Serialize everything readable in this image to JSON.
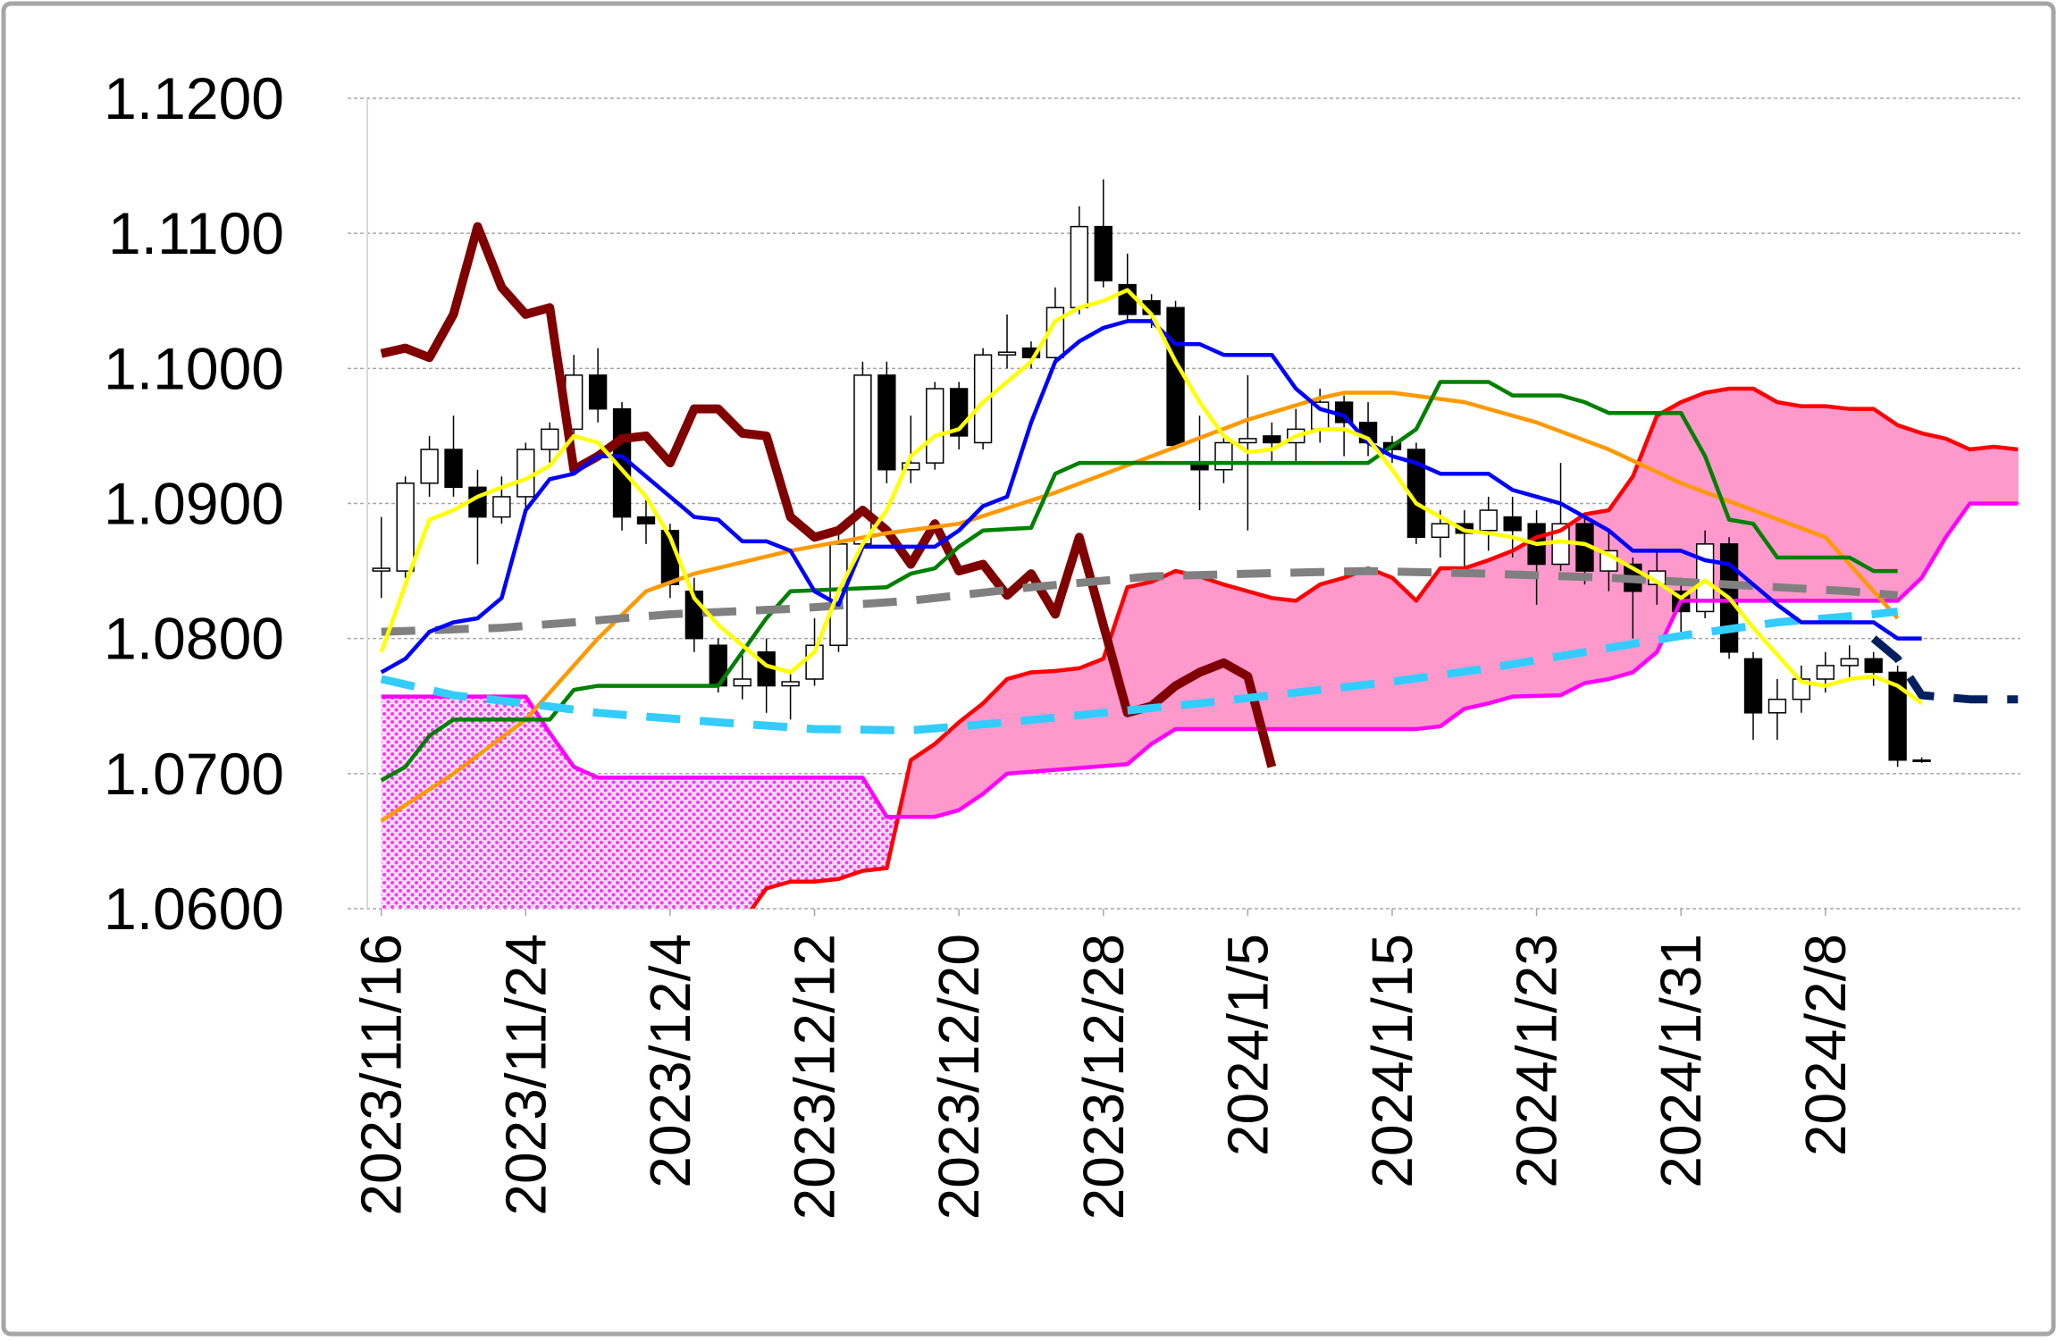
{
  "chart_data": {
    "type": "candlestick",
    "xlim": [
      -1.4,
      68.1
    ],
    "xticks": [
      {
        "value": 0,
        "label": "2023/11/16"
      },
      {
        "value": 6,
        "label": "2023/11/24"
      },
      {
        "value": 12,
        "label": "2023/12/4"
      },
      {
        "value": 18,
        "label": "2023/12/12"
      },
      {
        "value": 24,
        "label": "2023/12/20"
      },
      {
        "value": 30,
        "label": "2023/12/28"
      },
      {
        "value": 36,
        "label": "2024/1/5"
      },
      {
        "value": 42,
        "label": "2024/1/15"
      },
      {
        "value": 48,
        "label": "2024/1/23"
      },
      {
        "value": 54,
        "label": "2024/1/31"
      },
      {
        "value": 60,
        "label": "2024/2/8"
      }
    ],
    "ylim": [
      1.06,
      1.12
    ],
    "yticks": [
      {
        "value": 1.06,
        "label": "1.0600"
      },
      {
        "value": 1.07,
        "label": "1.0700"
      },
      {
        "value": 1.08,
        "label": "1.0800"
      },
      {
        "value": 1.09,
        "label": "1.0900"
      },
      {
        "value": 1.1,
        "label": "1.1000"
      },
      {
        "value": 1.11,
        "label": "1.1100"
      },
      {
        "value": 1.12,
        "label": "1.1200"
      }
    ],
    "grid": true,
    "x": [
      0,
      1,
      2,
      3,
      4,
      5,
      6,
      7,
      8,
      9,
      10,
      11,
      12,
      13,
      14,
      15,
      16,
      17,
      18,
      19,
      20,
      21,
      22,
      23,
      24,
      25,
      26,
      27,
      28,
      29,
      30,
      31,
      32,
      33,
      34,
      35,
      36,
      37,
      38,
      39,
      40,
      41,
      42,
      43,
      44,
      45,
      46,
      47,
      48,
      49,
      50,
      51,
      52,
      53,
      54,
      55,
      56,
      57,
      58,
      59,
      60,
      61,
      62,
      63,
      64
    ],
    "candles": {
      "up_color": "#ffffff",
      "down_color": "#000000",
      "open": [
        1.085,
        1.085,
        1.0915,
        1.094,
        1.0912,
        1.089,
        1.0905,
        1.094,
        1.0955,
        1.0995,
        1.097,
        1.089,
        1.088,
        1.0835,
        1.0795,
        1.0765,
        1.079,
        1.0765,
        1.077,
        1.0795,
        1.087,
        1.0995,
        1.0925,
        1.093,
        1.0985,
        1.0945,
        1.101,
        1.1015,
        1.1008,
        1.1045,
        1.1105,
        1.1062,
        1.105,
        1.1045,
        1.093,
        1.0925,
        1.0945,
        1.095,
        1.0945,
        1.0955,
        1.0975,
        1.096,
        1.0945,
        1.094,
        1.0875,
        1.0885,
        1.088,
        1.089,
        1.0885,
        1.0855,
        1.0885,
        1.085,
        1.0855,
        1.084,
        1.0835,
        1.082,
        1.087,
        1.0785,
        1.0745,
        1.0755,
        1.077,
        1.078,
        1.0785,
        1.0775,
        1.071
      ],
      "high": [
        1.089,
        1.092,
        1.095,
        1.0965,
        1.0925,
        1.092,
        1.0945,
        1.096,
        1.101,
        1.1015,
        1.0975,
        1.0905,
        1.0885,
        1.0845,
        1.08,
        1.079,
        1.08,
        1.0775,
        1.0815,
        1.088,
        1.1005,
        1.1005,
        1.0965,
        1.099,
        1.099,
        1.1015,
        1.104,
        1.102,
        1.106,
        1.112,
        1.114,
        1.1085,
        1.1055,
        1.105,
        1.0965,
        1.095,
        1.0995,
        1.096,
        1.097,
        1.0985,
        1.098,
        1.0975,
        1.095,
        1.0945,
        1.0895,
        1.0895,
        1.0905,
        1.0905,
        1.0895,
        1.093,
        1.089,
        1.088,
        1.086,
        1.0865,
        1.0845,
        1.088,
        1.0875,
        1.079,
        1.077,
        1.078,
        1.079,
        1.0795,
        1.079,
        1.078,
        1.0712
      ],
      "low": [
        1.083,
        1.0845,
        1.0905,
        1.0905,
        1.0855,
        1.0885,
        1.0895,
        1.093,
        1.095,
        1.096,
        1.088,
        1.087,
        1.083,
        1.079,
        1.076,
        1.0755,
        1.0745,
        1.074,
        1.0765,
        1.079,
        1.0865,
        1.0915,
        1.0915,
        1.0925,
        1.094,
        1.094,
        1.1,
        1.1,
        1.1005,
        1.104,
        1.106,
        1.1035,
        1.103,
        1.094,
        1.0895,
        1.0915,
        1.088,
        1.093,
        1.093,
        1.0945,
        1.0935,
        1.0935,
        1.093,
        1.087,
        1.086,
        1.085,
        1.0865,
        1.086,
        1.0825,
        1.085,
        1.084,
        1.0835,
        1.08,
        1.0825,
        1.0805,
        1.0815,
        1.0785,
        1.0725,
        1.0725,
        1.0745,
        1.076,
        1.077,
        1.0765,
        1.0705,
        1.0708
      ],
      "close": [
        1.0852,
        1.0915,
        1.094,
        1.0912,
        1.089,
        1.0905,
        1.094,
        1.0955,
        1.0995,
        1.097,
        1.089,
        1.0885,
        1.084,
        1.08,
        1.0765,
        1.077,
        1.0765,
        1.0768,
        1.0795,
        1.087,
        1.0995,
        1.0925,
        1.093,
        1.0985,
        1.095,
        1.101,
        1.1012,
        1.1008,
        1.1045,
        1.1105,
        1.1065,
        1.104,
        1.104,
        1.0943,
        1.0925,
        1.0945,
        1.0948,
        1.0945,
        1.0955,
        1.0975,
        1.096,
        1.0945,
        1.094,
        1.0875,
        1.0885,
        1.0878,
        1.0895,
        1.088,
        1.0855,
        1.0885,
        1.085,
        1.0865,
        1.0835,
        1.085,
        1.082,
        1.087,
        1.079,
        1.0745,
        1.0755,
        1.077,
        1.078,
        1.0785,
        1.0775,
        1.071,
        1.071
      ]
    },
    "cloud": {
      "color": "#ff99cc",
      "pattern_color": "#ff33ff"
    },
    "series": [
      {
        "color": "#ff0000",
        "style": "solid",
        "x": [
          15,
          16,
          17,
          18,
          19,
          20,
          21,
          22,
          23,
          24,
          25,
          26,
          27,
          28,
          29,
          30,
          31,
          32,
          33,
          34,
          35,
          36,
          37,
          38,
          39,
          40,
          41,
          42,
          43,
          44,
          45,
          46,
          47,
          48,
          49,
          50,
          51,
          52,
          53,
          54,
          55,
          56,
          57,
          58,
          59,
          60,
          61,
          62,
          63,
          64,
          65,
          66,
          67,
          68
        ],
        "values": [
          1.059,
          1.0615,
          1.062,
          1.062,
          1.0622,
          1.0628,
          1.063,
          1.071,
          1.0722,
          1.0738,
          1.0752,
          1.077,
          1.0775,
          1.0776,
          1.0778,
          1.0785,
          1.0838,
          1.0842,
          1.085,
          1.0846,
          1.084,
          1.0835,
          1.083,
          1.0828,
          1.084,
          1.0845,
          1.0852,
          1.0845,
          1.0828,
          1.0852,
          1.0852,
          1.0858,
          1.0865,
          1.0875,
          1.088,
          1.0892,
          1.0895,
          1.092,
          1.0965,
          1.0975,
          1.0982,
          1.0985,
          1.0985,
          1.0975,
          1.0972,
          1.0972,
          1.097,
          1.097,
          1.0958,
          1.0952,
          1.0948,
          1.094,
          1.0942,
          1.094
        ]
      },
      {
        "color": "#ff00ff",
        "style": "solid",
        "x": [
          0,
          6,
          7,
          8,
          9,
          20,
          21,
          23,
          24,
          25,
          26,
          31,
          32,
          33,
          43,
          44,
          45,
          46,
          47,
          49,
          50,
          51,
          52,
          53,
          54,
          63,
          64,
          65,
          66,
          68
        ],
        "values": [
          1.0757,
          1.0757,
          1.073,
          1.0705,
          1.0697,
          1.0697,
          1.0668,
          1.0668,
          1.0673,
          1.0685,
          1.07,
          1.0707,
          1.0722,
          1.0733,
          1.0733,
          1.0735,
          1.0748,
          1.0752,
          1.0757,
          1.0758,
          1.0767,
          1.077,
          1.0775,
          1.079,
          1.0828,
          1.0828,
          1.0845,
          1.0875,
          1.09,
          1.09
        ]
      },
      {
        "color": "#800000",
        "style": "bold",
        "x": [
          0,
          1,
          2,
          3,
          4,
          5,
          6,
          7,
          8,
          9,
          10,
          11,
          12,
          13,
          14,
          15,
          16,
          17,
          18,
          19,
          20,
          21,
          22,
          23,
          24,
          25,
          26,
          27,
          28,
          29,
          30,
          31,
          32,
          33,
          34,
          35,
          36,
          37
        ],
        "values": [
          1.1011,
          1.1015,
          1.1008,
          1.104,
          1.1105,
          1.106,
          1.104,
          1.1045,
          1.0925,
          1.0935,
          1.0948,
          1.095,
          1.093,
          1.097,
          1.097,
          1.0952,
          1.095,
          1.089,
          1.0875,
          1.088,
          1.0895,
          1.088,
          1.0855,
          1.0885,
          1.085,
          1.0855,
          1.0832,
          1.0848,
          1.0818,
          1.0875,
          1.081,
          1.0745,
          1.075,
          1.0765,
          1.0775,
          1.0782,
          1.0772,
          1.0705
        ]
      },
      {
        "color": "#ff9900",
        "style": "solid",
        "x": [
          0,
          3,
          6,
          9,
          11,
          13,
          17,
          21,
          24,
          28,
          32,
          36,
          39,
          40,
          42,
          45,
          48,
          51,
          54,
          57,
          60,
          63
        ],
        "values": [
          1.0665,
          1.07,
          1.074,
          1.08,
          1.0835,
          1.0848,
          1.0865,
          1.0878,
          1.0885,
          1.0908,
          1.0935,
          1.0962,
          1.0978,
          1.0982,
          1.0982,
          1.0975,
          1.096,
          1.094,
          1.0915,
          1.0895,
          1.0875,
          1.0815
        ]
      },
      {
        "color": "#008000",
        "style": "solid",
        "x": [
          0,
          1,
          2,
          3,
          7,
          8,
          9,
          14,
          15,
          16,
          17,
          21,
          22,
          23,
          24,
          25,
          27,
          28,
          29,
          41,
          43,
          44,
          46,
          47,
          49,
          50,
          51,
          54,
          55,
          56,
          57,
          58,
          61,
          62,
          63
        ],
        "values": [
          1.0695,
          1.0705,
          1.0728,
          1.074,
          1.074,
          1.0762,
          1.0765,
          1.0765,
          1.079,
          1.0815,
          1.0835,
          1.0838,
          1.0848,
          1.0852,
          1.0868,
          1.088,
          1.0882,
          1.0922,
          1.093,
          1.093,
          1.0955,
          1.099,
          1.099,
          1.098,
          1.098,
          1.0975,
          1.0967,
          1.0967,
          1.0935,
          1.0888,
          1.0885,
          1.086,
          1.086,
          1.085,
          1.085
        ]
      },
      {
        "color": "#808080",
        "style": "dashed",
        "x": [
          0,
          5,
          8,
          12,
          17,
          22,
          27,
          32,
          36,
          41,
          46,
          51,
          56,
          61,
          63
        ],
        "values": [
          1.0805,
          1.0808,
          1.0812,
          1.0818,
          1.0822,
          1.0828,
          1.0838,
          1.0846,
          1.0848,
          1.085,
          1.0848,
          1.0845,
          1.084,
          1.0835,
          1.0832
        ]
      },
      {
        "color": "#33ccff",
        "style": "dashed",
        "x": [
          0,
          3,
          6,
          9,
          14,
          18,
          22,
          26,
          30,
          34,
          38,
          42,
          46,
          50,
          54,
          58,
          62,
          63
        ],
        "values": [
          1.077,
          1.0758,
          1.0752,
          1.0745,
          1.0738,
          1.0733,
          1.0732,
          1.0738,
          1.0745,
          1.0752,
          1.076,
          1.0768,
          1.0778,
          1.079,
          1.0802,
          1.0812,
          1.0818,
          1.082
        ]
      },
      {
        "color": "#0000ff",
        "style": "solid",
        "values": [
          1.0775,
          1.0785,
          1.0805,
          1.0812,
          1.0815,
          1.083,
          1.0895,
          1.0918,
          1.0922,
          1.0935,
          1.0935,
          1.092,
          1.0905,
          1.089,
          1.0888,
          1.0872,
          1.0872,
          1.0865,
          1.0835,
          1.0825,
          1.0868,
          1.0868,
          1.0868,
          1.0868,
          1.088,
          1.0898,
          1.0905,
          1.096,
          1.1005,
          1.102,
          1.103,
          1.1035,
          1.1035,
          1.1018,
          1.1018,
          1.101,
          1.101,
          1.101,
          1.0985,
          1.097,
          1.0965,
          1.0945,
          1.0935,
          1.093,
          1.0922,
          1.0922,
          1.0922,
          1.091,
          1.0905,
          1.09,
          1.089,
          1.088,
          1.0865,
          1.0865,
          1.0865,
          1.0858,
          1.0855,
          1.084,
          1.0825,
          1.0812,
          1.0812,
          1.0812,
          1.0812,
          1.08,
          1.08
        ]
      },
      {
        "color": "#ffff00",
        "style": "solid",
        "values": [
          1.079,
          1.084,
          1.0888,
          1.0895,
          1.0905,
          1.0912,
          1.0918,
          1.0928,
          1.095,
          1.0945,
          1.0925,
          1.0905,
          1.0875,
          1.083,
          1.081,
          1.0795,
          1.078,
          1.0775,
          1.079,
          1.0835,
          1.087,
          1.0895,
          1.0935,
          1.095,
          1.0955,
          1.0975,
          1.099,
          1.1005,
          1.1035,
          1.1045,
          1.105,
          1.1058,
          1.104,
          1.1005,
          1.0975,
          1.095,
          1.0938,
          1.094,
          1.095,
          1.0955,
          1.0955,
          1.0948,
          1.0925,
          1.09,
          1.089,
          1.088,
          1.0878,
          1.0875,
          1.087,
          1.0872,
          1.087,
          1.0862,
          1.0852,
          1.0842,
          1.083,
          1.0843,
          1.083,
          1.0808,
          1.0788,
          1.0768,
          1.0765,
          1.077,
          1.0772,
          1.0765,
          1.0752
        ]
      },
      {
        "color": "#002060",
        "style": "dashed",
        "x": [
          62,
          63,
          64,
          66,
          68
        ],
        "values": [
          1.08,
          1.0785,
          1.0758,
          1.0755,
          1.0755
        ]
      }
    ]
  }
}
